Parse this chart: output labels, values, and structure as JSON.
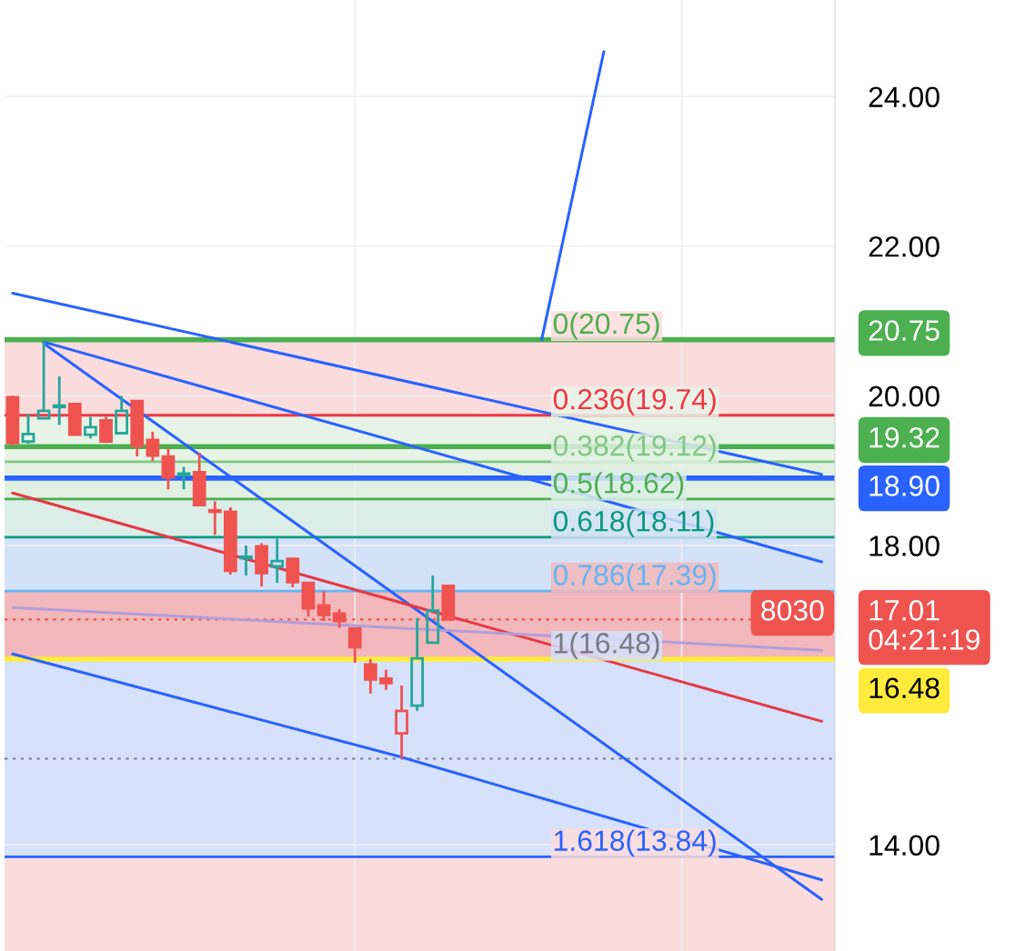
{
  "chart_data": {
    "type": "candlestick",
    "categories": [
      null,
      null,
      null,
      null,
      null,
      null,
      null,
      null,
      null,
      null,
      null,
      null,
      null,
      null,
      null,
      null,
      null,
      null,
      null,
      null,
      null,
      null,
      null,
      null,
      null,
      null,
      null,
      null,
      null,
      null,
      null,
      null,
      null,
      null,
      null,
      null,
      null,
      null,
      null,
      null,
      null,
      null,
      null,
      null,
      null,
      null,
      null,
      null,
      null,
      null,
      null,
      null,
      null
    ],
    "ohlc": [
      [
        19.98,
        20.0,
        19.33,
        19.37
      ],
      [
        19.39,
        19.76,
        19.36,
        19.49
      ],
      [
        19.7,
        20.73,
        19.7,
        19.8
      ],
      [
        19.85,
        20.26,
        19.61,
        19.87
      ],
      [
        19.89,
        19.9,
        19.47,
        19.48
      ],
      [
        19.48,
        19.72,
        19.43,
        19.58
      ],
      [
        19.67,
        19.72,
        19.37,
        19.39
      ],
      [
        19.5,
        20.0,
        19.49,
        19.8
      ],
      [
        19.93,
        19.94,
        19.19,
        19.33
      ],
      [
        19.41,
        19.52,
        19.13,
        19.2
      ],
      [
        19.19,
        19.3,
        18.75,
        18.91
      ],
      [
        18.94,
        19.05,
        18.75,
        18.96
      ],
      [
        18.98,
        19.24,
        18.53,
        18.54
      ],
      [
        18.47,
        18.59,
        18.14,
        18.45
      ],
      [
        18.45,
        18.51,
        17.61,
        17.66
      ],
      [
        17.83,
        18.0,
        17.6,
        17.85
      ],
      [
        17.99,
        18.03,
        17.45,
        17.63
      ],
      [
        17.72,
        18.09,
        17.5,
        17.79
      ],
      [
        17.82,
        17.83,
        17.44,
        17.51
      ],
      [
        17.5,
        17.51,
        17.05,
        17.16
      ],
      [
        17.2,
        17.39,
        16.99,
        17.07
      ],
      [
        17.09,
        17.15,
        16.9,
        16.99
      ],
      [
        16.89,
        16.9,
        16.43,
        16.64
      ],
      [
        16.41,
        16.48,
        16.02,
        16.21
      ],
      [
        16.22,
        16.34,
        16.07,
        16.16
      ],
      [
        15.49,
        16.13,
        15.15,
        15.79
      ],
      [
        15.86,
        17.03,
        15.79,
        16.49
      ],
      [
        16.7,
        17.6,
        16.7,
        17.13
      ],
      [
        17.46,
        17.47,
        17.0,
        17.01
      ],
      null,
      null,
      null,
      null,
      null,
      null,
      null,
      null,
      null,
      null,
      null,
      null,
      null,
      null,
      null,
      null,
      null,
      null,
      null,
      null,
      null,
      null,
      null,
      null
    ],
    "colors": [
      "#ef5350",
      "#26a69a",
      "#26a69a",
      "#26a69a",
      "#ef5350",
      "#26a69a",
      "#ef5350",
      "#26a69a",
      "#ef5350",
      "#ef5350",
      "#ef5350",
      "#26a69a",
      "#ef5350",
      "#ef5350",
      "#ef5350",
      "#26a69a",
      "#ef5350",
      "#26a69a",
      "#ef5350",
      "#ef5350",
      "#ef5350",
      "#ef5350",
      "#ef5350",
      "#ef5350",
      "#ef5350",
      "#ef5350",
      "#26a69a",
      "#26a69a",
      "#ef5350",
      null,
      null,
      null,
      null,
      null,
      null,
      null,
      null,
      null,
      null,
      null,
      null,
      null,
      null,
      null,
      null,
      null,
      null,
      null,
      null,
      null,
      null,
      null,
      null
    ],
    "series": [
      {
        "type": "line",
        "color": "#2962ff",
        "values": [
          21.37,
          null,
          null,
          null,
          null,
          null,
          null,
          null,
          null,
          null,
          null,
          null,
          null,
          null,
          null,
          null,
          null,
          null,
          null,
          null,
          null,
          null,
          null,
          null,
          null,
          null,
          null,
          null,
          null,
          null,
          null,
          null,
          null,
          null,
          null,
          null,
          null,
          null,
          null,
          null,
          null,
          null,
          null,
          null,
          null,
          null,
          null,
          null,
          null,
          null,
          null,
          null,
          18.95
        ]
      },
      {
        "type": "line",
        "color": "#2962ff",
        "values": [
          null,
          null,
          20.72,
          null,
          null,
          null,
          null,
          null,
          null,
          null,
          null,
          null,
          null,
          null,
          null,
          null,
          null,
          null,
          null,
          null,
          null,
          null,
          null,
          null,
          null,
          null,
          null,
          null,
          null,
          null,
          null,
          null,
          null,
          null,
          null,
          null,
          null,
          null,
          null,
          null,
          null,
          null,
          null,
          null,
          null,
          null,
          null,
          null,
          null,
          null,
          null,
          null,
          17.78
        ]
      },
      {
        "type": "line",
        "color": "#2962ff",
        "values": [
          null,
          null,
          20.7,
          null,
          null,
          null,
          null,
          null,
          null,
          null,
          null,
          null,
          null,
          null,
          null,
          null,
          null,
          null,
          null,
          null,
          null,
          null,
          null,
          null,
          null,
          null,
          null,
          null,
          null,
          null,
          null,
          null,
          null,
          null,
          null,
          null,
          null,
          null,
          null,
          null,
          null,
          null,
          null,
          null,
          null,
          null,
          null,
          null,
          null,
          null,
          null,
          null,
          13.27
        ]
      },
      {
        "type": "line",
        "color": "#2962ff",
        "values": [
          16.55,
          null,
          null,
          null,
          null,
          null,
          null,
          null,
          null,
          null,
          null,
          null,
          null,
          null,
          null,
          null,
          null,
          null,
          null,
          null,
          null,
          null,
          null,
          null,
          null,
          15.17,
          null,
          null,
          null,
          null,
          null,
          null,
          null,
          null,
          null,
          null,
          null,
          null,
          null,
          null,
          null,
          null,
          null,
          null,
          null,
          null,
          null,
          null,
          null,
          null,
          null,
          null,
          13.53
        ]
      },
      {
        "type": "line",
        "color": "#e53945",
        "values": [
          18.7,
          null,
          null,
          null,
          null,
          null,
          null,
          null,
          null,
          null,
          null,
          null,
          null,
          null,
          null,
          null,
          null,
          null,
          null,
          null,
          null,
          null,
          null,
          null,
          null,
          null,
          null,
          null,
          null,
          null,
          null,
          null,
          null,
          null,
          null,
          null,
          null,
          null,
          null,
          null,
          null,
          null,
          null,
          null,
          null,
          null,
          null,
          null,
          null,
          null,
          null,
          null,
          15.65
        ]
      },
      {
        "type": "line",
        "color": "#b39ddb",
        "values": [
          17.17,
          null,
          null,
          null,
          null,
          null,
          null,
          null,
          null,
          null,
          null,
          null,
          null,
          null,
          null,
          null,
          null,
          null,
          null,
          null,
          null,
          null,
          null,
          null,
          null,
          null,
          null,
          null,
          null,
          null,
          null,
          null,
          null,
          null,
          null,
          null,
          null,
          null,
          null,
          null,
          null,
          null,
          null,
          null,
          null,
          null,
          null,
          null,
          null,
          null,
          null,
          null,
          16.6
        ]
      },
      {
        "type": "line",
        "color": "#2962ff",
        "values": [
          null,
          null,
          null,
          null,
          null,
          null,
          null,
          null,
          null,
          null,
          null,
          null,
          null,
          null,
          null,
          null,
          null,
          null,
          null,
          null,
          null,
          null,
          null,
          null,
          null,
          null,
          null,
          null,
          null,
          null,
          null,
          null,
          null,
          null,
          20.75,
          null,
          null,
          null,
          24.6,
          null,
          null,
          null,
          null,
          null,
          null,
          null,
          null,
          null,
          null,
          null,
          null,
          null,
          null
        ]
      }
    ],
    "bands": [
      {
        "axis": "y",
        "from": 20.75,
        "to": 19.74,
        "label": "0(20.75)",
        "color": "#fbdcdc"
      },
      {
        "axis": "y",
        "from": 19.74,
        "to": 19.12,
        "label": "0.236(19.74)",
        "color": "#e6f3e6"
      },
      {
        "axis": "y",
        "from": 19.12,
        "to": 18.62,
        "label": "0.382(19.12)",
        "color": "#e1f1e1"
      },
      {
        "axis": "y",
        "from": 18.62,
        "to": 18.11,
        "label": "0.5(18.62)",
        "color": "#dbeee8"
      },
      {
        "axis": "y",
        "from": 18.11,
        "to": 17.39,
        "label": "0.618(18.11)",
        "color": "#d3e2f7"
      },
      {
        "axis": "y",
        "from": 17.39,
        "to": 16.48,
        "label": "0.786(17.39)",
        "color": "#f2b8bb"
      },
      {
        "axis": "y",
        "from": 16.48,
        "to": 13.84,
        "label": "1(16.48)",
        "color": "#d6e1fb"
      },
      {
        "axis": "y",
        "from": 13.84,
        "to": 12.58,
        "label": "1.618(13.84)",
        "color": "#fbdcdc"
      }
    ],
    "ref_lines": [
      {
        "axis": "y",
        "value": 20.75,
        "label": "20.75",
        "color": "#4caf50"
      },
      {
        "axis": "y",
        "value": 19.74,
        "color": "#f23645"
      },
      {
        "axis": "y",
        "value": 19.32,
        "label": "19.32",
        "color": "#4caf50"
      },
      {
        "axis": "y",
        "value": 19.12,
        "color": "#81c784"
      },
      {
        "axis": "y",
        "value": 18.9,
        "label": "18.90",
        "color": "#2962ff"
      },
      {
        "axis": "y",
        "value": 18.62,
        "color": "#4caf50"
      },
      {
        "axis": "y",
        "value": 18.11,
        "color": "#089981"
      },
      {
        "axis": "y",
        "value": 17.39,
        "color": "#64b5f6"
      },
      {
        "axis": "y",
        "value": 17.01,
        "label": "17.01\n04:21:19",
        "color": "#ef5350",
        "line_style": "dotted"
      },
      {
        "axis": "y",
        "value": 16.48,
        "label": "16.48",
        "color": "#ffeb3b"
      },
      {
        "axis": "y",
        "value": 15.15,
        "color": "#787b86",
        "line_style": "dotted"
      },
      {
        "axis": "y",
        "value": 13.84,
        "color": "#2962ff"
      }
    ],
    "annotations": [
      "8030"
    ],
    "ylim": [
      12.58,
      25.29
    ],
    "yticks": [
      {
        "value": 14,
        "label": "14.00"
      },
      {
        "value": 18,
        "label": "18.00"
      },
      {
        "value": 20,
        "label": "20.00"
      },
      {
        "value": 22,
        "label": "22.00"
      },
      {
        "value": 24,
        "label": "24.00"
      }
    ],
    "grid": true,
    "tick_labels": "y"
  }
}
